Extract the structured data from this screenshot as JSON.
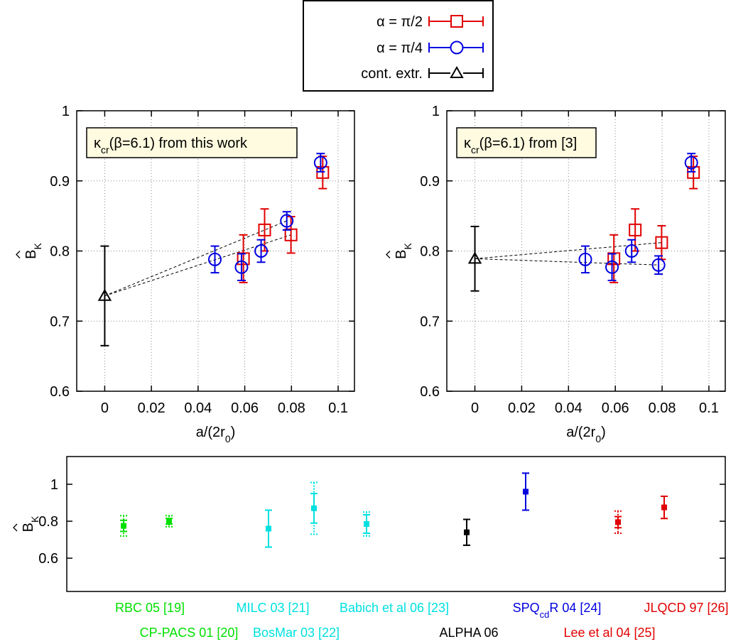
{
  "legend": {
    "entries": [
      {
        "label": "α = π/2",
        "color": "#e00000",
        "marker": "square"
      },
      {
        "label": "α = π/4",
        "color": "#0000e0",
        "marker": "circle"
      },
      {
        "label": "cont. extr.",
        "color": "#000000",
        "marker": "triangle"
      }
    ],
    "placement": "top-center"
  },
  "chart_data": [
    {
      "type": "scatter",
      "panel": "top-left",
      "annotation": "κcr(β=6.1) from this work",
      "xlabel": "a/(2r0)",
      "ylabel": "B̂K",
      "xlim": [
        -0.012,
        0.107
      ],
      "ylim": [
        0.6,
        1.0
      ],
      "xticks": [
        "0",
        "0.02",
        "0.04",
        "0.06",
        "0.08",
        "0.1"
      ],
      "yticks": [
        "0.6",
        "0.7",
        "0.8",
        "0.9",
        "1"
      ],
      "grid": true,
      "series": [
        {
          "name": "α = π/2",
          "color": "#e00000",
          "marker": "square",
          "points": [
            {
              "x": 0.0594,
              "y": 0.789,
              "err": 0.034
            },
            {
              "x": 0.0685,
              "y": 0.83,
              "err": 0.03
            },
            {
              "x": 0.0798,
              "y": 0.823,
              "err": 0.026
            },
            {
              "x": 0.0934,
              "y": 0.912,
              "err": 0.023
            }
          ]
        },
        {
          "name": "α = π/4",
          "color": "#0000e0",
          "marker": "circle",
          "points": [
            {
              "x": 0.0472,
              "y": 0.788,
              "err": 0.019
            },
            {
              "x": 0.0586,
              "y": 0.777,
              "err": 0.019
            },
            {
              "x": 0.067,
              "y": 0.8,
              "err": 0.016
            },
            {
              "x": 0.078,
              "y": 0.843,
              "err": 0.013
            },
            {
              "x": 0.0925,
              "y": 0.926,
              "err": 0.013
            }
          ]
        },
        {
          "name": "cont. extr.",
          "color": "#000000",
          "marker": "triangle",
          "points": [
            {
              "x": 0.0,
              "y": 0.736,
              "err": 0.071
            }
          ]
        }
      ],
      "fit_lines": [
        {
          "from": [
            0.0,
            0.736
          ],
          "to": [
            0.0798,
            0.823
          ]
        },
        {
          "from": [
            0.0,
            0.736
          ],
          "to": [
            0.078,
            0.843
          ]
        }
      ]
    },
    {
      "type": "scatter",
      "panel": "top-right",
      "annotation": "κcr(β=6.1) from [3]",
      "xlabel": "a/(2r0)",
      "ylabel": "B̂K",
      "xlim": [
        -0.012,
        0.107
      ],
      "ylim": [
        0.6,
        1.0
      ],
      "xticks": [
        "0",
        "0.02",
        "0.04",
        "0.06",
        "0.08",
        "0.1"
      ],
      "yticks": [
        "0.6",
        "0.7",
        "0.8",
        "0.9",
        "1"
      ],
      "grid": true,
      "series": [
        {
          "name": "α = π/2",
          "color": "#e00000",
          "marker": "square",
          "points": [
            {
              "x": 0.0594,
              "y": 0.789,
              "err": 0.034
            },
            {
              "x": 0.0685,
              "y": 0.83,
              "err": 0.03
            },
            {
              "x": 0.0798,
              "y": 0.812,
              "err": 0.024
            },
            {
              "x": 0.0934,
              "y": 0.912,
              "err": 0.023
            }
          ]
        },
        {
          "name": "α = π/4",
          "color": "#0000e0",
          "marker": "circle",
          "points": [
            {
              "x": 0.0472,
              "y": 0.788,
              "err": 0.019
            },
            {
              "x": 0.0586,
              "y": 0.777,
              "err": 0.019
            },
            {
              "x": 0.067,
              "y": 0.8,
              "err": 0.016
            },
            {
              "x": 0.0785,
              "y": 0.78,
              "err": 0.013
            },
            {
              "x": 0.0925,
              "y": 0.926,
              "err": 0.013
            }
          ]
        },
        {
          "name": "cont. extr.",
          "color": "#000000",
          "marker": "triangle",
          "points": [
            {
              "x": 0.0,
              "y": 0.789,
              "err": 0.046
            }
          ]
        }
      ],
      "fit_lines": [
        {
          "from": [
            0.0,
            0.789
          ],
          "to": [
            0.0798,
            0.812
          ]
        },
        {
          "from": [
            0.0,
            0.789
          ],
          "to": [
            0.0785,
            0.78
          ]
        }
      ]
    },
    {
      "type": "scatter",
      "panel": "bottom",
      "ylabel": "B̂K",
      "ylim": [
        0.42,
        1.15
      ],
      "yticks": [
        "0.6",
        "0.8",
        "1"
      ],
      "grid": false,
      "points": [
        {
          "label": "RBC 05 [19]",
          "color": "#00e000",
          "y": 0.775,
          "err": 0.03,
          "syst": 0.055,
          "label_row": 1
        },
        {
          "label": "CP-PACS 01 [20]",
          "color": "#00e000",
          "y": 0.8,
          "err": 0.015,
          "syst": 0.03,
          "label_row": 2
        },
        {
          "label": "MILC 03 [21]",
          "color": "#00e0e0",
          "y": 0.76,
          "err": 0.1,
          "syst": 0.1,
          "label_row": 1
        },
        {
          "label": "BosMar 03 [22]",
          "color": "#00e0e0",
          "y": 0.87,
          "err": 0.08,
          "syst": 0.14,
          "label_row": 2
        },
        {
          "label": "Babich et al 06 [23]",
          "color": "#00e0e0",
          "y": 0.785,
          "err": 0.05,
          "syst": 0.065,
          "label_row": 1
        },
        {
          "label": "ALPHA 06",
          "color": "#000000",
          "y": 0.74,
          "err": 0.07,
          "syst": 0.07,
          "label_row": 2
        },
        {
          "label": "SPQcdR 04 [24]",
          "color": "#0000e0",
          "y": 0.96,
          "err": 0.1,
          "syst": 0.1,
          "label_row": 1
        },
        {
          "label": "Lee et al 04 [25]",
          "color": "#e00000",
          "y": 0.795,
          "err": 0.03,
          "syst": 0.06,
          "label_row": 2
        },
        {
          "label": "JLQCD 97 [26]",
          "color": "#e00000",
          "y": 0.875,
          "err": 0.06,
          "syst": 0.06,
          "label_row": 1
        }
      ]
    }
  ]
}
